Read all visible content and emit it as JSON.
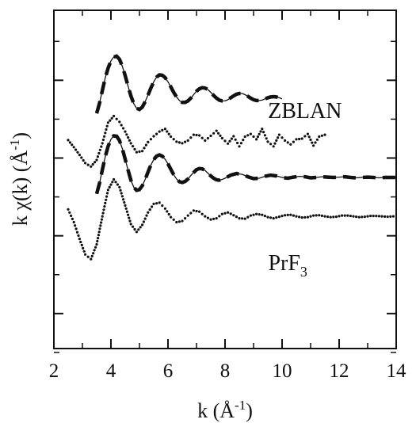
{
  "chart_data": {
    "type": "line",
    "title": "",
    "xlabel": "k (Å-1)",
    "ylabel": "k χ(k)  (Å-1)",
    "xlim": [
      2,
      14
    ],
    "ylim": [
      -6.4,
      2.3
    ],
    "x_ticks": [
      2,
      4,
      6,
      8,
      10,
      12,
      14
    ],
    "x_tick_labels": [
      "2",
      "4",
      "6",
      "8",
      "10",
      "12",
      "14"
    ],
    "y_ticks": [
      -6.5,
      -5.5,
      -4.5,
      -3.5,
      -2.5,
      -1.5,
      -0.5,
      0.5,
      1.5
    ],
    "y_tick_labels": [],
    "grid": false,
    "legend": "none",
    "annotations": [
      {
        "text": "ZBLAN",
        "x": 10.8,
        "y": -0.47
      },
      {
        "text": "PrF",
        "subscript": "3",
        "x": 10.2,
        "y": -4.38
      }
    ],
    "series": [
      {
        "style": "dashed",
        "offset": 0,
        "x": [
          3.5,
          3.6,
          3.7,
          3.8,
          3.9,
          4.0,
          4.1,
          4.2,
          4.3,
          4.4,
          4.5,
          4.6,
          4.7,
          4.8,
          4.9,
          5.0,
          5.1,
          5.2,
          5.3,
          5.4,
          5.5,
          5.6,
          5.7,
          5.8,
          5.9,
          6.0,
          6.1,
          6.2,
          6.3,
          6.4,
          6.5,
          6.6,
          6.7,
          6.8,
          6.9,
          7.0,
          7.1,
          7.2,
          7.3,
          7.4,
          7.5,
          7.6,
          7.7,
          7.8,
          7.9,
          8.0,
          8.1,
          8.2,
          8.3,
          8.4,
          8.5,
          8.6,
          8.7,
          8.8,
          8.9,
          9.0,
          9.1,
          9.2,
          9.3,
          9.4,
          9.5,
          9.6,
          9.7,
          9.8,
          9.9,
          10.0
        ],
        "y": [
          -0.35,
          -0.09,
          0.24,
          0.56,
          0.81,
          1.0,
          1.1,
          1.12,
          1.04,
          0.86,
          0.62,
          0.35,
          0.1,
          -0.1,
          -0.22,
          -0.25,
          -0.19,
          -0.05,
          0.12,
          0.3,
          0.46,
          0.58,
          0.64,
          0.63,
          0.57,
          0.46,
          0.33,
          0.19,
          0.07,
          -0.02,
          -0.07,
          -0.07,
          -0.03,
          0.04,
          0.13,
          0.22,
          0.28,
          0.31,
          0.3,
          0.26,
          0.19,
          0.11,
          0.04,
          -0.01,
          -0.03,
          -0.03,
          0.0,
          0.05,
          0.1,
          0.14,
          0.16,
          0.16,
          0.13,
          0.09,
          0.04,
          0.0,
          -0.02,
          -0.02,
          -0.01,
          0.02,
          0.05,
          0.07,
          0.08,
          0.07,
          0.05,
          0.02
        ]
      },
      {
        "style": "dotted",
        "offset": -1.0,
        "x": [
          2.5,
          2.7,
          2.9,
          3.1,
          3.3,
          3.5,
          3.7,
          3.9,
          4.1,
          4.3,
          4.5,
          4.7,
          4.9,
          5.1,
          5.3,
          5.5,
          5.7,
          5.9,
          6.1,
          6.3,
          6.5,
          6.7,
          6.9,
          7.1,
          7.3,
          7.5,
          7.7,
          7.9,
          8.1,
          8.3,
          8.5,
          8.7,
          8.9,
          9.1,
          9.3,
          9.5,
          9.7,
          9.9,
          10.1,
          10.3,
          10.5,
          10.7,
          10.9,
          11.1,
          11.3,
          11.5
        ],
        "y": [
          -0.04,
          -0.22,
          -0.42,
          -0.63,
          -0.72,
          -0.55,
          -0.12,
          0.41,
          0.58,
          0.43,
          0.18,
          -0.12,
          -0.35,
          -0.32,
          -0.09,
          0.06,
          0.18,
          0.25,
          0.05,
          -0.08,
          -0.12,
          -0.05,
          0.1,
          0.08,
          -0.05,
          0.07,
          0.2,
          0.01,
          -0.13,
          0.06,
          -0.2,
          0.05,
          0.12,
          -0.02,
          0.25,
          -0.08,
          -0.2,
          0.1,
          -0.05,
          -0.15,
          -0.02,
          0.0,
          0.12,
          -0.18,
          0.05,
          0.1
        ]
      },
      {
        "style": "dashed",
        "offset": -2.0,
        "x": [
          3.5,
          3.6,
          3.7,
          3.8,
          3.9,
          4.0,
          4.1,
          4.2,
          4.3,
          4.4,
          4.5,
          4.6,
          4.7,
          4.8,
          4.9,
          5.0,
          5.1,
          5.2,
          5.3,
          5.4,
          5.5,
          5.6,
          5.7,
          5.8,
          5.9,
          6.0,
          6.1,
          6.2,
          6.3,
          6.4,
          6.5,
          6.6,
          6.7,
          6.8,
          6.9,
          7.0,
          7.1,
          7.2,
          7.3,
          7.4,
          7.5,
          7.6,
          7.7,
          7.8,
          7.9,
          8.0,
          8.2,
          8.4,
          8.6,
          8.8,
          9.0,
          9.2,
          9.4,
          9.6,
          9.8,
          10.0,
          10.2,
          10.4,
          10.6,
          10.8,
          11.0,
          11.2,
          11.4,
          11.6,
          11.8,
          12.0,
          12.2,
          12.4,
          12.6,
          12.8,
          13.0,
          13.2,
          13.4,
          13.6,
          13.8,
          14.0
        ],
        "y": [
          -0.42,
          -0.15,
          0.2,
          0.53,
          0.8,
          0.98,
          1.07,
          1.06,
          0.95,
          0.74,
          0.47,
          0.19,
          -0.07,
          -0.25,
          -0.33,
          -0.31,
          -0.21,
          -0.05,
          0.14,
          0.32,
          0.46,
          0.55,
          0.58,
          0.55,
          0.47,
          0.35,
          0.21,
          0.07,
          -0.04,
          -0.11,
          -0.13,
          -0.1,
          -0.04,
          0.05,
          0.13,
          0.2,
          0.23,
          0.22,
          0.18,
          0.11,
          0.04,
          -0.02,
          -0.06,
          -0.07,
          -0.05,
          -0.02,
          0.06,
          0.1,
          0.08,
          0.02,
          -0.03,
          -0.02,
          0.03,
          0.06,
          0.04,
          0.0,
          -0.02,
          0.01,
          0.03,
          0.02,
          -0.01,
          0.0,
          0.02,
          0.01,
          0.0,
          0.01,
          0.02,
          0.0,
          -0.01,
          0.0,
          0.01,
          0.0,
          -0.01,
          0.0,
          0.0,
          0.0
        ]
      },
      {
        "style": "dotted",
        "offset": -3.0,
        "x": [
          2.5,
          2.7,
          2.9,
          3.1,
          3.3,
          3.5,
          3.7,
          3.9,
          4.1,
          4.3,
          4.5,
          4.7,
          4.9,
          5.1,
          5.3,
          5.5,
          5.7,
          5.9,
          6.1,
          6.3,
          6.5,
          6.7,
          6.9,
          7.1,
          7.3,
          7.5,
          7.7,
          7.9,
          8.1,
          8.3,
          8.5,
          8.7,
          8.9,
          9.1,
          9.3,
          9.5,
          9.7,
          9.9,
          10.1,
          10.3,
          10.5,
          10.7,
          10.9,
          11.1,
          11.3,
          11.5,
          11.7,
          11.9,
          12.1,
          12.3,
          12.5,
          12.7,
          12.9,
          13.1,
          13.3,
          13.5,
          13.7,
          13.9
        ],
        "y": [
          0.18,
          -0.15,
          -0.58,
          -0.98,
          -1.1,
          -0.72,
          0.0,
          0.68,
          0.95,
          0.75,
          0.28,
          -0.2,
          -0.4,
          -0.22,
          0.1,
          0.32,
          0.35,
          0.2,
          -0.02,
          -0.15,
          -0.12,
          0.02,
          0.15,
          0.12,
          0.0,
          -0.08,
          -0.05,
          0.06,
          0.1,
          0.03,
          -0.05,
          -0.06,
          0.02,
          0.06,
          0.04,
          -0.02,
          -0.05,
          -0.01,
          0.03,
          0.04,
          0.0,
          -0.03,
          -0.02,
          0.02,
          0.03,
          0.0,
          -0.02,
          -0.01,
          0.02,
          0.02,
          0.0,
          -0.02,
          -0.01,
          0.01,
          0.01,
          0.0,
          -0.01,
          0.0
        ]
      }
    ]
  }
}
